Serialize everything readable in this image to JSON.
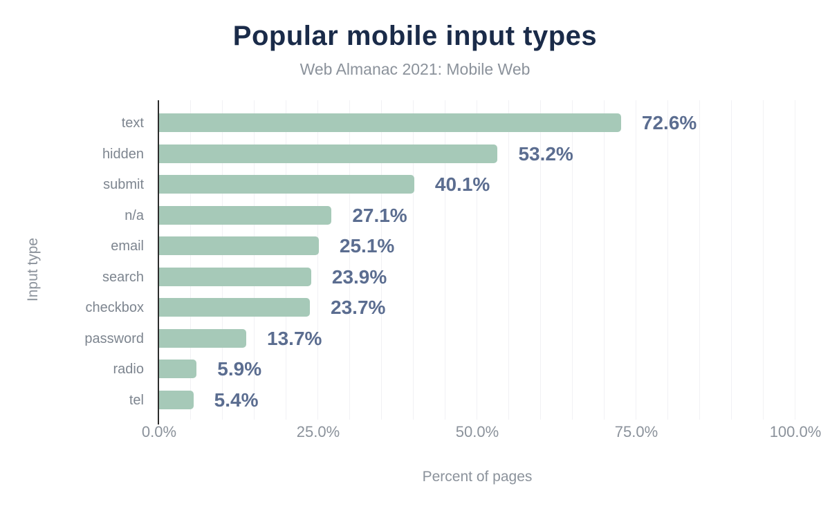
{
  "chart_data": {
    "type": "bar",
    "orientation": "horizontal",
    "title": "Popular mobile input types",
    "subtitle": "Web Almanac 2021: Mobile Web",
    "xlabel": "Percent of pages",
    "ylabel": "Input type",
    "categories": [
      "text",
      "hidden",
      "submit",
      "n/a",
      "email",
      "search",
      "checkbox",
      "password",
      "radio",
      "tel"
    ],
    "values": [
      72.6,
      53.2,
      40.1,
      27.1,
      25.1,
      23.9,
      23.7,
      13.7,
      5.9,
      5.4
    ],
    "value_labels": [
      "72.6%",
      "53.2%",
      "40.1%",
      "27.1%",
      "25.1%",
      "23.9%",
      "23.7%",
      "13.7%",
      "5.9%",
      "5.4%"
    ],
    "x_ticks": [
      {
        "value": 0,
        "label": "0.0%"
      },
      {
        "value": 25,
        "label": "25.0%"
      },
      {
        "value": 50,
        "label": "50.0%"
      },
      {
        "value": 75,
        "label": "75.0%"
      },
      {
        "value": 100,
        "label": "100.0%"
      }
    ],
    "xlim": [
      0,
      100
    ],
    "grid": {
      "show": true,
      "axis": "x",
      "step_percent": 5
    },
    "legend": "none",
    "colors": {
      "background": "#ffffff",
      "bar": "#a6c9b8",
      "value_label": "#5b6d90",
      "title": "#1a2b49",
      "subtitle": "#8b929b",
      "category_label": "#7d858f",
      "tick_label": "#8b929b",
      "axis_line": "#2b2b2b",
      "gridline": "#f1f1f4"
    }
  }
}
